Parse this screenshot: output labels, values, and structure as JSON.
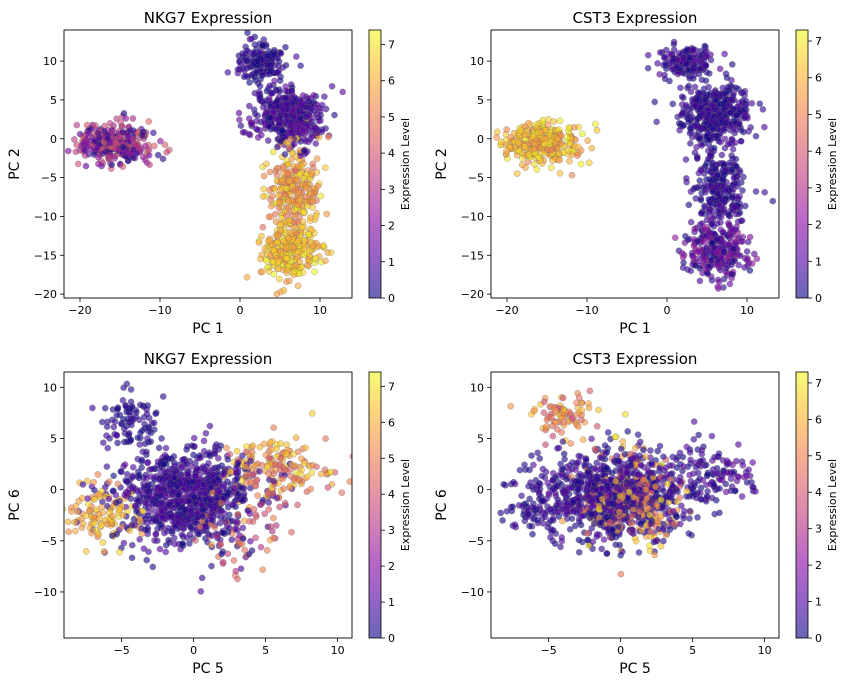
{
  "colormap": [
    "#0d0887",
    "#5302a3",
    "#8b0aa5",
    "#b83289",
    "#db5c68",
    "#f48849",
    "#febd2a",
    "#f0f921"
  ],
  "chart_data": [
    {
      "type": "scatter",
      "title": "NKG7 Expression",
      "xlabel": "PC 1",
      "ylabel": "PC 2",
      "xlim": [
        -22,
        14
      ],
      "ylim": [
        -20.5,
        14
      ],
      "xticks": [
        -20,
        -10,
        0,
        10
      ],
      "yticks": [
        -20,
        -15,
        -10,
        -5,
        0,
        5,
        10
      ],
      "colorbar": {
        "label": "Expression Level",
        "range": [
          0,
          7.4
        ],
        "ticks": [
          0,
          1,
          2,
          3,
          4,
          5,
          6,
          7
        ]
      },
      "clusters": [
        {
          "cx": -15.5,
          "cy": -0.5,
          "sx": 2.4,
          "sy": 1.3,
          "n": 320,
          "expr": [
            0,
            4.5
          ]
        },
        {
          "cx": 2.5,
          "cy": 9.8,
          "sx": 1.6,
          "sy": 1.1,
          "n": 160,
          "expr": [
            0,
            1.0
          ]
        },
        {
          "cx": 6.0,
          "cy": 3.0,
          "sx": 2.2,
          "sy": 1.9,
          "n": 420,
          "expr": [
            0,
            1.5
          ]
        },
        {
          "cx": 6.8,
          "cy": -6.5,
          "sx": 1.7,
          "sy": 2.8,
          "n": 260,
          "expr": [
            4.5,
            7.2
          ]
        },
        {
          "cx": 6.2,
          "cy": -14.5,
          "sx": 1.8,
          "sy": 1.8,
          "n": 260,
          "expr": [
            5.5,
            7.4
          ]
        }
      ]
    },
    {
      "type": "scatter",
      "title": "CST3 Expression",
      "xlabel": "PC 1",
      "ylabel": "PC 2",
      "xlim": [
        -22,
        14
      ],
      "ylim": [
        -20.5,
        14
      ],
      "xticks": [
        -20,
        -10,
        0,
        10
      ],
      "yticks": [
        -20,
        -15,
        -10,
        -5,
        0,
        5,
        10
      ],
      "colorbar": {
        "label": "Expression Level",
        "range": [
          0,
          7.3
        ],
        "ticks": [
          0,
          1,
          2,
          3,
          4,
          5,
          6,
          7
        ]
      },
      "clusters": [
        {
          "cx": -15.5,
          "cy": -0.5,
          "sx": 2.4,
          "sy": 1.3,
          "n": 320,
          "expr": [
            5.0,
            7.3
          ]
        },
        {
          "cx": 2.5,
          "cy": 9.8,
          "sx": 1.6,
          "sy": 1.1,
          "n": 160,
          "expr": [
            0,
            1.2
          ]
        },
        {
          "cx": 6.0,
          "cy": 3.0,
          "sx": 2.2,
          "sy": 1.9,
          "n": 420,
          "expr": [
            0,
            1.0
          ]
        },
        {
          "cx": 6.8,
          "cy": -6.5,
          "sx": 1.7,
          "sy": 2.8,
          "n": 260,
          "expr": [
            0,
            1.0
          ]
        },
        {
          "cx": 6.2,
          "cy": -14.5,
          "sx": 1.8,
          "sy": 1.8,
          "n": 260,
          "expr": [
            0,
            2.5
          ]
        }
      ]
    },
    {
      "type": "scatter",
      "title": "NKG7 Expression",
      "xlabel": "PC 5",
      "ylabel": "PC 6",
      "xlim": [
        -9,
        11
      ],
      "ylim": [
        -14.5,
        11.5
      ],
      "xticks": [
        -5,
        0,
        5,
        10
      ],
      "yticks": [
        -10,
        -5,
        0,
        5,
        10
      ],
      "colorbar": {
        "label": "Expression Level",
        "range": [
          0,
          7.4
        ],
        "ticks": [
          0,
          1,
          2,
          3,
          4,
          5,
          6,
          7
        ]
      },
      "clusters": [
        {
          "cx": -0.5,
          "cy": -0.8,
          "sx": 2.4,
          "sy": 2.3,
          "n": 900,
          "expr": [
            0,
            1.2
          ]
        },
        {
          "cx": -4.5,
          "cy": 6.5,
          "sx": 1.1,
          "sy": 1.3,
          "n": 90,
          "expr": [
            0,
            0.8
          ]
        },
        {
          "cx": -6.5,
          "cy": -2.5,
          "sx": 1.3,
          "sy": 1.5,
          "n": 110,
          "expr": [
            5.0,
            7.0
          ]
        },
        {
          "cx": 5.5,
          "cy": 2.0,
          "sx": 2.0,
          "sy": 1.6,
          "n": 170,
          "expr": [
            4.0,
            7.0
          ]
        },
        {
          "cx": 3.5,
          "cy": -4.5,
          "sx": 1.6,
          "sy": 2.0,
          "n": 60,
          "expr": [
            3.0,
            6.0
          ]
        }
      ]
    },
    {
      "type": "scatter",
      "title": "CST3 Expression",
      "xlabel": "PC 5",
      "ylabel": "PC 6",
      "xlim": [
        -9,
        11
      ],
      "ylim": [
        -14.5,
        11.5
      ],
      "xticks": [
        -5,
        0,
        5,
        10
      ],
      "yticks": [
        -10,
        -5,
        0,
        5,
        10
      ],
      "colorbar": {
        "label": "Expression Level",
        "range": [
          0,
          7.3
        ],
        "ticks": [
          0,
          1,
          2,
          3,
          4,
          5,
          6,
          7
        ]
      },
      "clusters": [
        {
          "cx": -0.5,
          "cy": -0.5,
          "sx": 2.6,
          "sy": 2.2,
          "n": 850,
          "expr": [
            0,
            1.2
          ]
        },
        {
          "cx": -4.0,
          "cy": 7.2,
          "sx": 1.2,
          "sy": 1.1,
          "n": 80,
          "expr": [
            3.5,
            6.5
          ]
        },
        {
          "cx": 0.8,
          "cy": -1.0,
          "sx": 1.6,
          "sy": 2.2,
          "n": 230,
          "expr": [
            4.0,
            7.0
          ]
        },
        {
          "cx": 6.0,
          "cy": 1.5,
          "sx": 1.8,
          "sy": 1.5,
          "n": 120,
          "expr": [
            0,
            1.5
          ]
        },
        {
          "cx": -6.0,
          "cy": -2.0,
          "sx": 1.2,
          "sy": 1.5,
          "n": 60,
          "expr": [
            0,
            1.0
          ]
        }
      ]
    }
  ]
}
